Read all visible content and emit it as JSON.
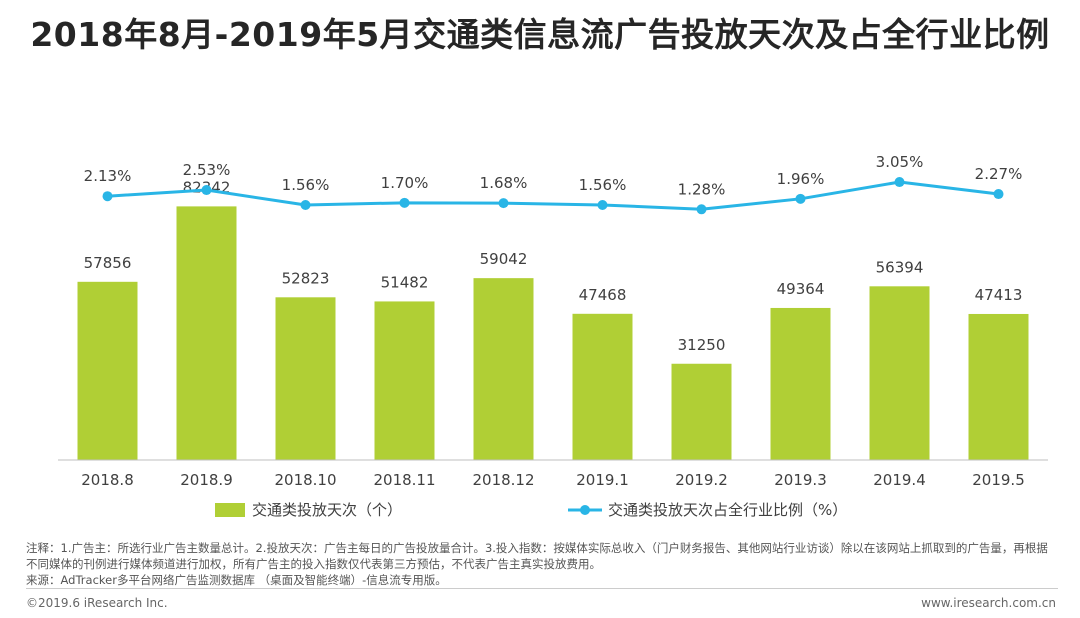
{
  "title": "2018年8月-2019年5月交通类信息流广告投放天次及占全行业比例",
  "chart_data": {
    "type": "bar+line",
    "categories": [
      "2018.8",
      "2018.9",
      "2018.10",
      "2018.11",
      "2018.12",
      "2019.1",
      "2019.2",
      "2019.3",
      "2019.4",
      "2019.5"
    ],
    "series": [
      {
        "name": "交通类投放天次（个）",
        "type": "bar",
        "axis": "left",
        "color": "#b0cf35",
        "values": [
          57856,
          82342,
          52823,
          51482,
          59042,
          47468,
          31250,
          49364,
          56394,
          47413
        ],
        "labels": [
          "57856",
          "82342",
          "52823",
          "51482",
          "59042",
          "47468",
          "31250",
          "49364",
          "56394",
          "47413"
        ]
      },
      {
        "name": "交通类投放天次占全行业比例（%）",
        "type": "line",
        "axis": "right",
        "color": "#29b5e6",
        "values": [
          2.13,
          2.53,
          1.56,
          1.7,
          1.68,
          1.56,
          1.28,
          1.96,
          3.05,
          2.27
        ],
        "labels": [
          "2.13%",
          "2.53%",
          "1.56%",
          "1.70%",
          "1.68%",
          "1.56%",
          "1.28%",
          "1.96%",
          "3.05%",
          "2.27%"
        ]
      }
    ],
    "ylim_left": [
      0,
      100000
    ],
    "ylim_right": [
      -15,
      5
    ],
    "legend_position": "bottom",
    "grid": false
  },
  "note": {
    "line1": "注释：1.广告主：所选行业广告主数量总计。2.投放天次：广告主每日的广告投放量合计。3.投入指数：按媒体实际总收入（门户财务报告、其他网站行业访谈）除以在该网站上抓取到的广告量，再根据不同媒体的刊例进行媒体频道进行加权，所有广告主的投入指数仅代表第三方预估，不代表广告主真实投放费用。",
    "line2": "来源：AdTracker多平台网络广告监测数据库 （桌面及智能终端）-信息流专用版。"
  },
  "footer": {
    "copyright": "©2019.6 iResearch Inc.",
    "website": "www.iresearch.com.cn"
  }
}
